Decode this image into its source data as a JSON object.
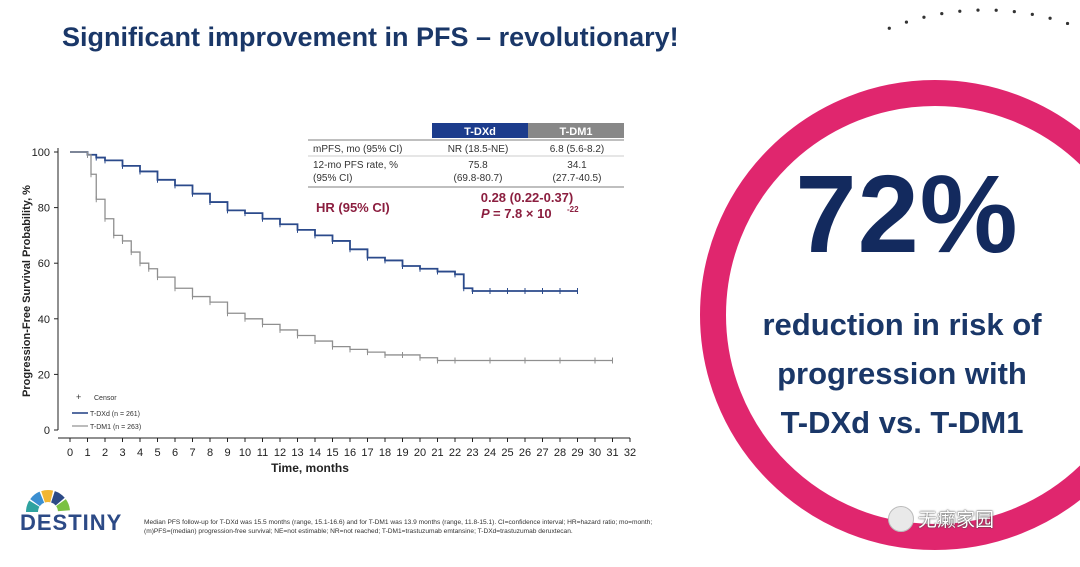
{
  "title": "Significant improvement in PFS – revolutionary!",
  "highlight": {
    "value": "72%",
    "lines": [
      "reduction in risk of",
      "progression with",
      "T-DXd vs. T-DM1"
    ]
  },
  "table": {
    "arms": [
      "T-DXd",
      "T-DM1"
    ],
    "arm_colors": [
      "#1c3c8c",
      "#888888"
    ],
    "row1_label": "mPFS, mo (95% CI)",
    "row1_values": [
      "NR (18.5-NE)",
      "6.8 (5.6-8.2)"
    ],
    "row2_label_line1": "12-mo PFS rate, %",
    "row2_label_line2": "(95% CI)",
    "row2_values_line1": [
      "75.8",
      "34.1"
    ],
    "row2_values_line2": [
      "(69.8-80.7)",
      "(27.7-40.5)"
    ],
    "hr_label": "HR (95% CI)",
    "hr_value": "0.28 (0.22-0.37)",
    "p_label": "P",
    "p_value": "= 7.8 × 10",
    "p_exponent": "-22",
    "hr_color": "#8b1e3f"
  },
  "legend": {
    "censor": "Censor",
    "tdxd": "T-DXd (n = 261)",
    "tdm1": "T-DM1 (n = 263)"
  },
  "chart_data": {
    "type": "line",
    "title": "",
    "xlabel": "Time,  months",
    "ylabel": "Progression-Free Survival Probability, %",
    "xlim": [
      0,
      32
    ],
    "ylim": [
      0,
      100
    ],
    "x_ticks": [
      0,
      1,
      2,
      3,
      4,
      5,
      6,
      7,
      8,
      9,
      10,
      11,
      12,
      13,
      14,
      15,
      16,
      17,
      18,
      19,
      20,
      21,
      22,
      23,
      24,
      25,
      26,
      27,
      28,
      29,
      30,
      31,
      32
    ],
    "y_ticks": [
      0,
      20,
      40,
      60,
      80,
      100
    ],
    "legend_position": "bottom-left",
    "series": [
      {
        "name": "T-DXd (n = 261)",
        "color": "#2b4a8b",
        "points": [
          [
            0,
            100
          ],
          [
            1,
            99
          ],
          [
            1.5,
            98
          ],
          [
            2,
            97
          ],
          [
            3,
            95
          ],
          [
            4,
            93
          ],
          [
            5,
            90
          ],
          [
            6,
            88
          ],
          [
            7,
            85
          ],
          [
            8,
            82
          ],
          [
            9,
            79
          ],
          [
            10,
            78
          ],
          [
            11,
            76
          ],
          [
            12,
            74
          ],
          [
            13,
            72
          ],
          [
            14,
            70
          ],
          [
            15,
            68
          ],
          [
            16,
            65
          ],
          [
            17,
            62
          ],
          [
            18,
            61
          ],
          [
            19,
            59
          ],
          [
            20,
            58
          ],
          [
            21,
            57
          ],
          [
            22,
            56
          ],
          [
            22.5,
            51
          ],
          [
            23,
            50
          ],
          [
            24,
            50
          ],
          [
            25,
            50
          ],
          [
            26,
            50
          ],
          [
            27,
            50
          ],
          [
            28,
            50
          ],
          [
            29,
            50
          ]
        ]
      },
      {
        "name": "T-DM1 (n = 263)",
        "color": "#8f8f8f",
        "points": [
          [
            0,
            100
          ],
          [
            1,
            99
          ],
          [
            1.2,
            92
          ],
          [
            1.5,
            83
          ],
          [
            2,
            76
          ],
          [
            2.5,
            70
          ],
          [
            3,
            68
          ],
          [
            3.5,
            64
          ],
          [
            4,
            60
          ],
          [
            4.5,
            58
          ],
          [
            5,
            55
          ],
          [
            6,
            51
          ],
          [
            7,
            48
          ],
          [
            8,
            46
          ],
          [
            9,
            42
          ],
          [
            10,
            40
          ],
          [
            11,
            38
          ],
          [
            12,
            36
          ],
          [
            13,
            34
          ],
          [
            14,
            32
          ],
          [
            15,
            30
          ],
          [
            16,
            29
          ],
          [
            17,
            28
          ],
          [
            18,
            27
          ],
          [
            19,
            27
          ],
          [
            20,
            26
          ],
          [
            21,
            25
          ],
          [
            22,
            25
          ],
          [
            24,
            25
          ],
          [
            26,
            25
          ],
          [
            28,
            25
          ],
          [
            30,
            25
          ],
          [
            31,
            25
          ]
        ]
      }
    ]
  },
  "logo": {
    "text": "DESTINY"
  },
  "footnote": "Median PFS follow-up for T-DXd was 15.5 months (range, 15.1-16.6) and for T-DM1 was 13.9 months (range, 11.8-15.1). CI=confidence interval; HR=hazard ratio; mo=month; (m)PFS=(median) progression-free survival; NE=not estimable; NR=not reached; T-DM1=trastuzumab emtansine; T-DXd=trastuzumab deruxtecan.",
  "watermark": "无癞家园"
}
